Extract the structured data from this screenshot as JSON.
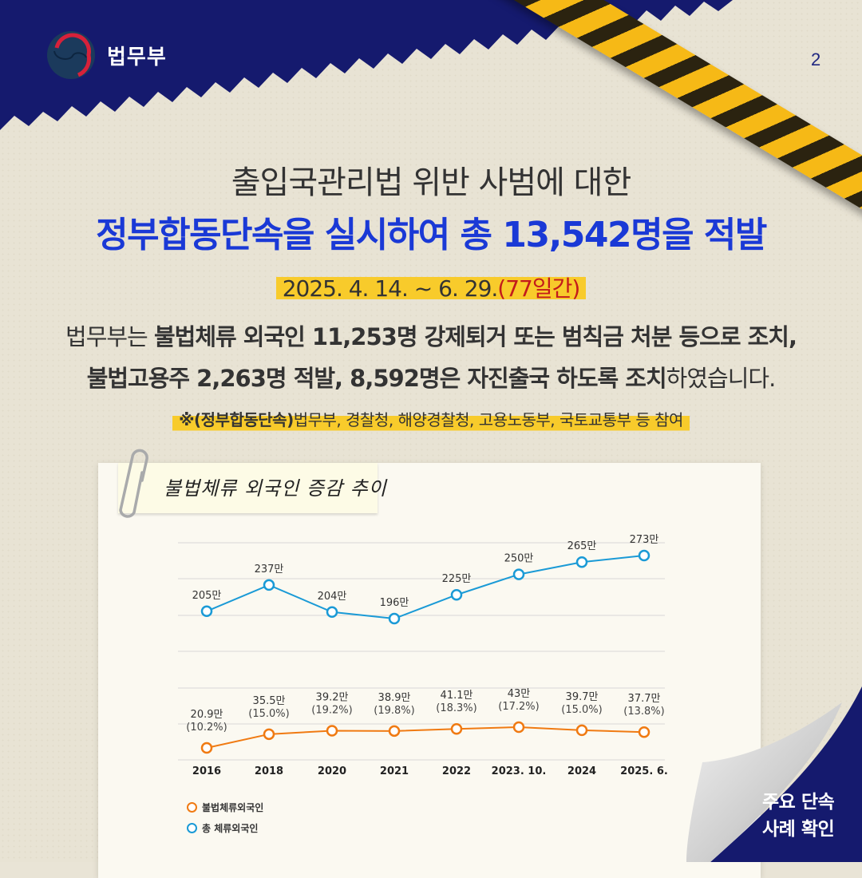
{
  "header": {
    "org_name": "법무부",
    "page_number": "2"
  },
  "headline": {
    "line1": "출입국관리법 위반 사범에 대한",
    "line2": "정부합동단속을 실시하여 총 13,542명을 적발"
  },
  "period": {
    "dates": "2025. 4. 14. ~ 6. 29.",
    "duration": "(77일간)"
  },
  "summary": {
    "l1_a": "법무부는 ",
    "l1_b": "불법체류 외국인 11,253명 강제퇴거 또는 범칙금 처분 등으로 조치,",
    "l2_a": "불법고용주 2,263명 적발, 8,592명은 자진출국 하도록 조치",
    "l2_b": "하였습니다."
  },
  "note": {
    "prefix": "※(정부합동단속)",
    "text": "법무부, 경찰청, 해양경찰청, 고용노동부, 국토교통부 등 참여"
  },
  "chart_title": "불법체류 외국인 증감 추이",
  "cta": {
    "line1": "주요 단속",
    "line2": "사례 확인"
  },
  "colors": {
    "navy": "#151a6e",
    "headline_blue": "#1a39d6",
    "highlight_yellow": "#f8cb2b",
    "total_line": "#1a9ad6",
    "illegal_line": "#f07a12"
  },
  "chart_data": {
    "type": "line",
    "title": "불법체류 외국인 증감 추이",
    "categories": [
      "2016",
      "2018",
      "2020",
      "2021",
      "2022",
      "2023. 10.",
      "2024",
      "2025. 6."
    ],
    "series": [
      {
        "name": "총 체류외국인",
        "unit": "만",
        "values": [
          205,
          237,
          204,
          196,
          225,
          250,
          265,
          273
        ],
        "labels": [
          "205만",
          "237만",
          "204만",
          "196만",
          "225만",
          "250만",
          "265만",
          "273만"
        ],
        "color": "#1a9ad6"
      },
      {
        "name": "불법체류외국인",
        "unit": "만",
        "values": [
          20.9,
          35.5,
          39.2,
          38.9,
          41.1,
          43,
          39.7,
          37.7
        ],
        "labels": [
          "20.9만",
          "35.5만",
          "39.2만",
          "38.9만",
          "41.1만",
          "43만",
          "39.7만",
          "37.7만"
        ],
        "ratio_labels": [
          "(10.2%)",
          "(15.0%)",
          "(19.2%)",
          "(19.8%)",
          "(18.3%)",
          "(17.2%)",
          "(15.0%)",
          "(13.8%)"
        ],
        "color": "#f07a12"
      }
    ],
    "xlabel": "",
    "ylabel": "",
    "grid": true,
    "legend_position": "bottom-left",
    "legend": [
      "불법체류외국인",
      "총 체류외국인"
    ]
  }
}
